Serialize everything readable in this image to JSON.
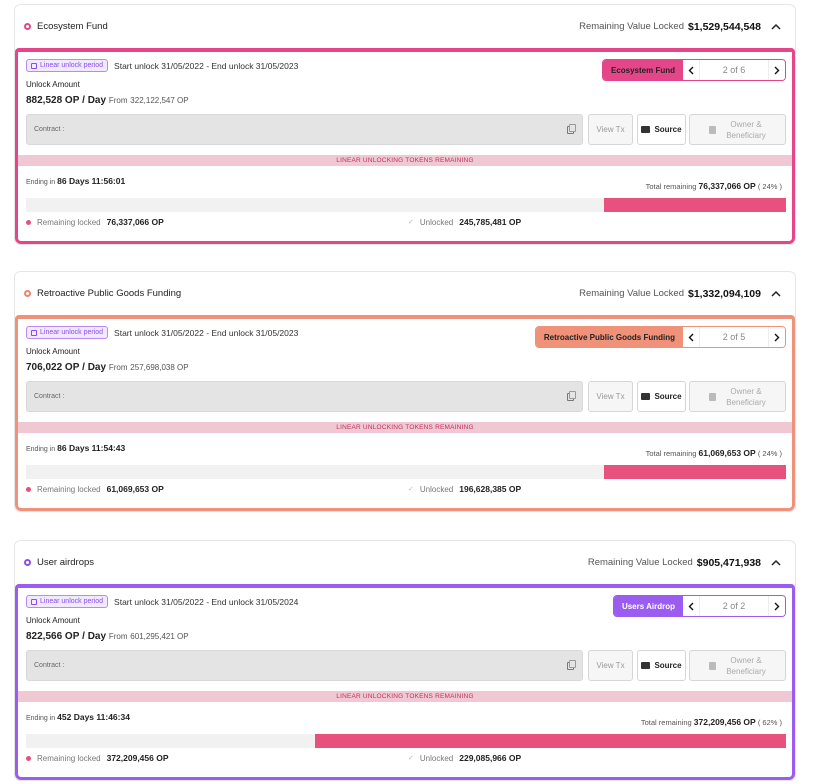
{
  "common": {
    "tag_label": "Linear unlock period",
    "unlock_amount_label": "Unlock Amount",
    "per_day": "/ Day",
    "from_label": "From",
    "contract_label": "Contract :",
    "view_tx": "View Tx",
    "source": "Source",
    "owner_line1": "Owner &",
    "owner_line2": "Beneficiary",
    "banner": "LINEAR UNLOCKING TOKENS REMAINING",
    "ending_label": "Ending in",
    "total_label": "Total remaining",
    "remaining_locked_label": "Remaining locked",
    "unlocked_label": "Unlocked",
    "remaining_value_locked_label": "Remaining Value Locked",
    "bar_color": "#e8507d"
  },
  "cards": [
    {
      "title": "Ecosystem Fund",
      "remaining_value": "$1,529,544,548",
      "accent": "#e5468a",
      "ring": "#e5468a",
      "period": "Start unlock 31/05/2022 - End unlock 31/05/2023",
      "amount": "882,528 OP",
      "from_value": "322,122,547 OP",
      "switcher_name": "Ecosystem Fund",
      "switcher_count": "2 of 6",
      "ending": "86 Days 11:56:01",
      "total_remaining": "76,337,066 OP",
      "total_pct": "( 24% )",
      "remaining_fraction": 0.24,
      "remaining_locked": "76,337,066 OP",
      "unlocked": "245,785,481 OP"
    },
    {
      "title": "Retroactive Public Goods Funding",
      "remaining_value": "$1,332,094,109",
      "accent": "#f0917a",
      "ring": "#e9866e",
      "period": "Start unlock 31/05/2022 - End unlock 31/05/2023",
      "amount": "706,022 OP",
      "from_value": "257,698,038 OP",
      "switcher_name": "Retroactive Public Goods Funding",
      "switcher_count": "2 of 5",
      "ending": "86 Days 11:54:43",
      "total_remaining": "61,069,653 OP",
      "total_pct": "( 24% )",
      "remaining_fraction": 0.24,
      "remaining_locked": "61,069,653 OP",
      "unlocked": "196,628,385 OP"
    },
    {
      "title": "User airdrops",
      "remaining_value": "$905,471,938",
      "accent": "#9b5cf0",
      "ring": "#8e4fe8",
      "period": "Start unlock 31/05/2022 - End unlock 31/05/2024",
      "amount": "822,566 OP",
      "from_value": "601,295,421 OP",
      "switcher_name": "Users Airdrop",
      "switcher_count": "2 of 2",
      "ending": "452 Days 11:46:34",
      "total_remaining": "372,209,456 OP",
      "total_pct": "( 62% )",
      "remaining_fraction": 0.62,
      "remaining_locked": "372,209,456 OP",
      "unlocked": "229,085,966 OP"
    }
  ]
}
